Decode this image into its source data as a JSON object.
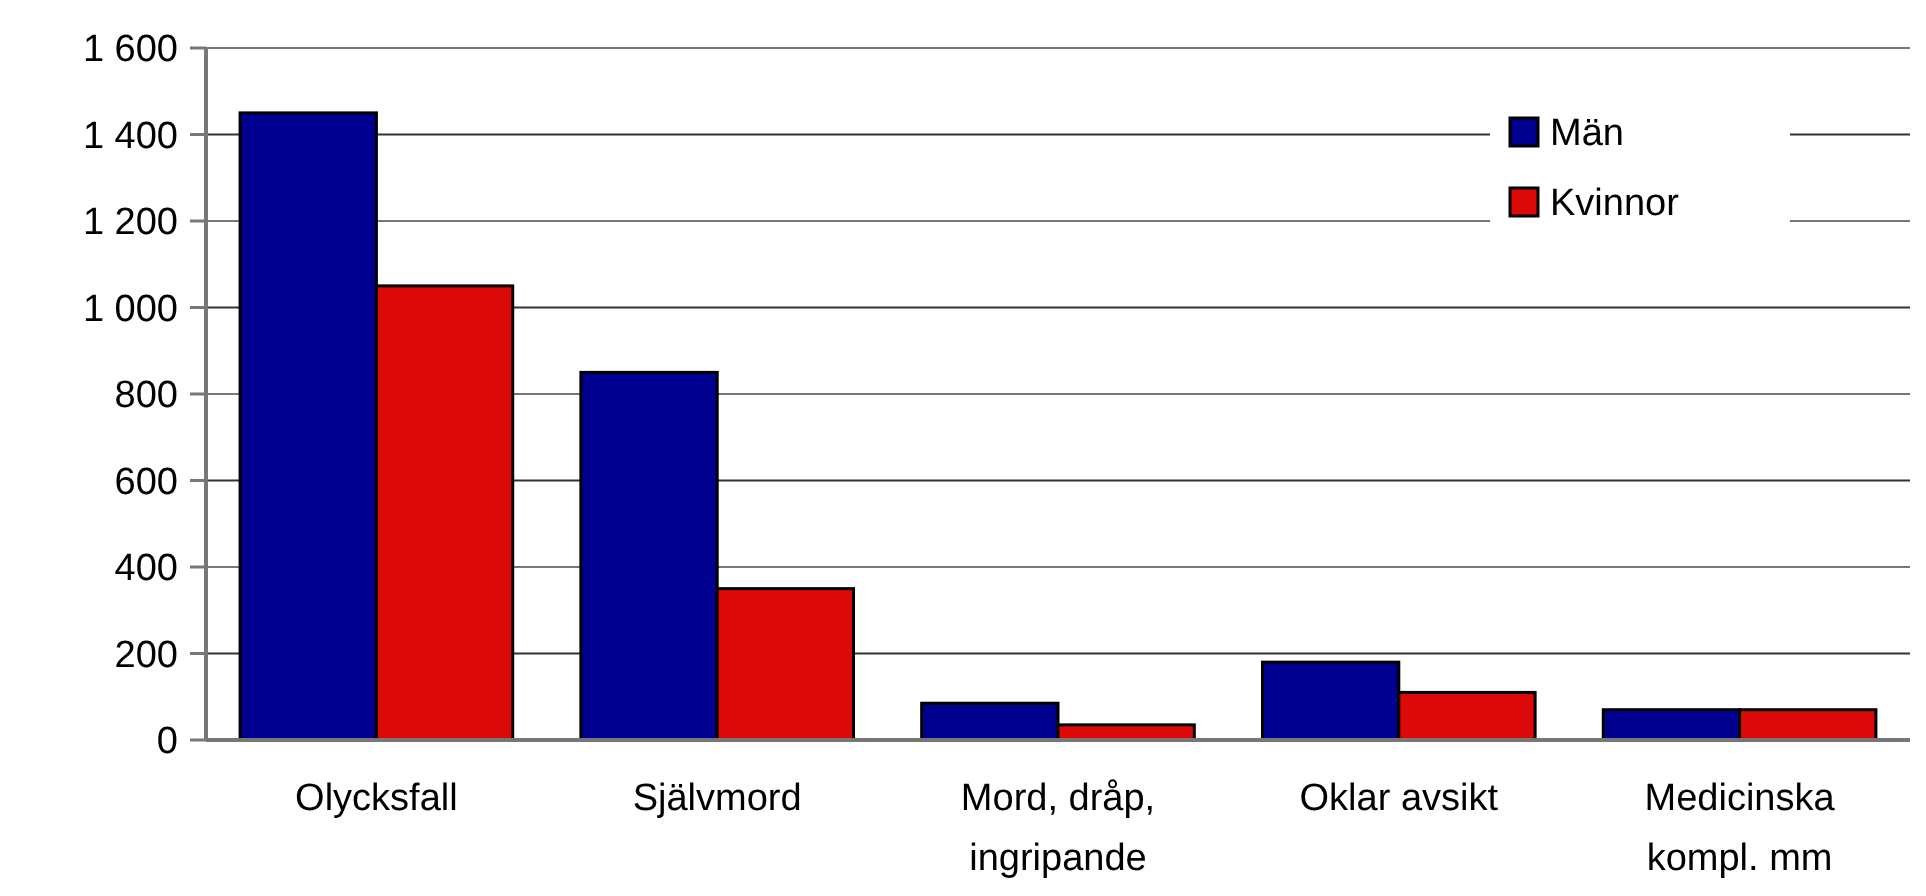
{
  "chart_data": {
    "type": "bar",
    "categories": [
      "Olycksfall",
      "Självmord",
      "Mord, dråp, ingripande",
      "Oklar avsikt",
      "Medicinska kompl. mm"
    ],
    "series": [
      {
        "name": "Män",
        "color": "#000090",
        "values": [
          1450,
          850,
          85,
          180,
          70
        ]
      },
      {
        "name": "Kvinnor",
        "color": "#dd0808",
        "values": [
          1050,
          350,
          35,
          110,
          70
        ]
      }
    ],
    "ylim": [
      0,
      1600
    ],
    "yticks": [
      {
        "value": 0,
        "label": "0"
      },
      {
        "value": 200,
        "label": "200"
      },
      {
        "value": 400,
        "label": "400"
      },
      {
        "value": 600,
        "label": "600"
      },
      {
        "value": 800,
        "label": "800"
      },
      {
        "value": 1000,
        "label": "1 000"
      },
      {
        "value": 1200,
        "label": "1 200"
      },
      {
        "value": 1400,
        "label": "1 400"
      },
      {
        "value": 1600,
        "label": "1 600"
      }
    ],
    "grid": "y",
    "legend": "top right"
  }
}
